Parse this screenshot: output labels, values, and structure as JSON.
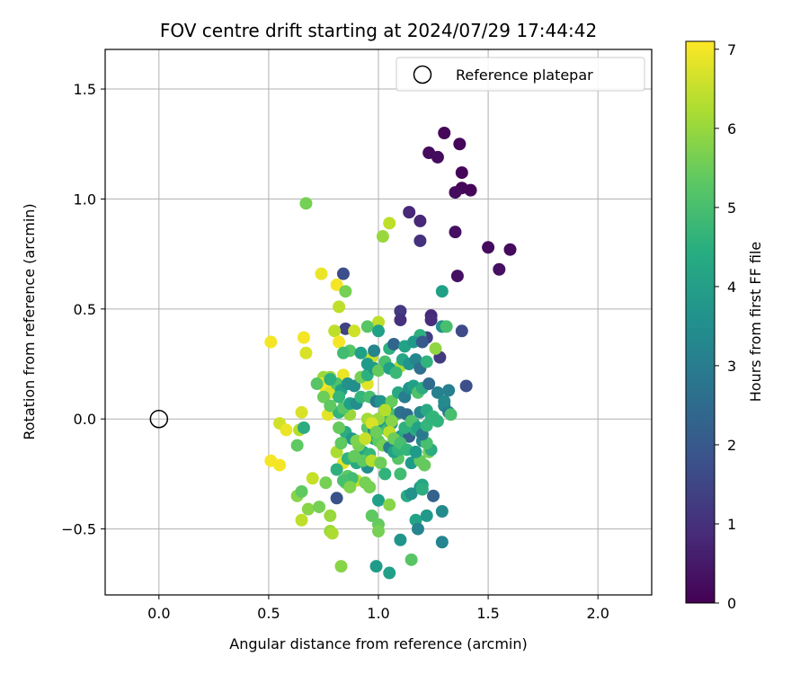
{
  "chart_data": {
    "type": "scatter",
    "title": "FOV centre drift starting at 2024/07/29 17:44:42",
    "xlabel": "Angular distance from reference (arcmin)",
    "ylabel": "Rotation from reference (arcmin)",
    "xlim": [
      -0.245,
      2.245
    ],
    "ylim": [
      -0.8,
      1.68
    ],
    "xticks": [
      0.0,
      0.5,
      1.0,
      1.5,
      2.0
    ],
    "xtick_labels": [
      "0.0",
      "0.5",
      "1.0",
      "1.5",
      "2.0"
    ],
    "yticks": [
      -0.5,
      0.0,
      0.5,
      1.0,
      1.5
    ],
    "ytick_labels": [
      "−0.5",
      "0.0",
      "0.5",
      "1.0",
      "1.5"
    ],
    "grid": true,
    "legend": {
      "placement": "top-right",
      "label": "Reference platepar"
    },
    "reference_point": {
      "x": 0.0,
      "y": 0.0
    },
    "colorbar": {
      "label": "Hours from first FF file",
      "range": [
        0,
        7.1
      ],
      "ticks": [
        0,
        1,
        2,
        3,
        4,
        5,
        6,
        7
      ],
      "colormap": "viridis"
    },
    "points": [
      [
        1.3,
        1.3,
        0.1
      ],
      [
        1.37,
        1.25,
        0.1
      ],
      [
        1.23,
        1.21,
        0.2
      ],
      [
        1.27,
        1.19,
        0.2
      ],
      [
        1.38,
        1.12,
        0.1
      ],
      [
        1.38,
        1.05,
        0.1
      ],
      [
        1.42,
        1.04,
        0.1
      ],
      [
        1.35,
        1.03,
        0.2
      ],
      [
        1.14,
        0.94,
        0.8
      ],
      [
        1.19,
        0.9,
        0.8
      ],
      [
        1.19,
        0.81,
        1.0
      ],
      [
        1.35,
        0.85,
        0.3
      ],
      [
        1.5,
        0.78,
        0.2
      ],
      [
        1.6,
        0.77,
        0.2
      ],
      [
        1.55,
        0.68,
        0.3
      ],
      [
        1.36,
        0.65,
        0.3
      ],
      [
        0.84,
        0.66,
        1.7
      ],
      [
        1.1,
        0.49,
        1.2
      ],
      [
        1.24,
        0.47,
        0.8
      ],
      [
        1.1,
        0.45,
        1.0
      ],
      [
        1.38,
        0.4,
        1.6
      ],
      [
        1.22,
        0.37,
        1.3
      ],
      [
        1.28,
        0.28,
        1.2
      ],
      [
        1.4,
        0.15,
        1.7
      ],
      [
        1.24,
        0.45,
        0.9
      ],
      [
        0.85,
        0.41,
        1.4
      ],
      [
        0.67,
        0.98,
        5.6
      ],
      [
        1.02,
        0.83,
        6.0
      ],
      [
        1.05,
        0.89,
        6.4
      ],
      [
        0.74,
        0.66,
        6.9
      ],
      [
        0.81,
        0.61,
        7.0
      ],
      [
        0.85,
        0.58,
        5.6
      ],
      [
        0.82,
        0.51,
        6.4
      ],
      [
        0.8,
        0.4,
        6.4
      ],
      [
        0.89,
        0.4,
        6.6
      ],
      [
        1.0,
        0.44,
        6.4
      ],
      [
        0.95,
        0.42,
        5.2
      ],
      [
        0.66,
        0.37,
        7.0
      ],
      [
        0.82,
        0.35,
        7.0
      ],
      [
        0.67,
        0.3,
        6.7
      ],
      [
        0.51,
        0.35,
        7.0
      ],
      [
        0.75,
        0.19,
        6.0
      ],
      [
        0.74,
        0.16,
        6.9
      ],
      [
        0.76,
        0.14,
        7.0
      ],
      [
        0.78,
        0.12,
        6.7
      ],
      [
        0.84,
        0.2,
        6.9
      ],
      [
        0.82,
        0.15,
        6.6
      ],
      [
        0.95,
        0.16,
        6.8
      ],
      [
        0.97,
        0.28,
        6.5
      ],
      [
        1.1,
        0.24,
        6.2
      ],
      [
        0.87,
        0.02,
        6.0
      ],
      [
        0.77,
        0.02,
        6.8
      ],
      [
        0.65,
        0.03,
        6.7
      ],
      [
        0.55,
        -0.02,
        6.6
      ],
      [
        0.58,
        -0.05,
        6.9
      ],
      [
        0.64,
        -0.05,
        6.3
      ],
      [
        0.63,
        -0.12,
        5.3
      ],
      [
        0.51,
        -0.19,
        7.0
      ],
      [
        0.55,
        -0.21,
        7.0
      ],
      [
        0.7,
        -0.27,
        6.5
      ],
      [
        0.76,
        -0.29,
        5.6
      ],
      [
        0.84,
        -0.2,
        6.8
      ],
      [
        0.81,
        -0.15,
        6.2
      ],
      [
        0.85,
        -0.29,
        5.5
      ],
      [
        0.9,
        -0.28,
        6.4
      ],
      [
        0.63,
        -0.35,
        5.8
      ],
      [
        0.65,
        -0.33,
        5.3
      ],
      [
        0.68,
        -0.41,
        5.8
      ],
      [
        0.73,
        -0.4,
        5.6
      ],
      [
        0.78,
        -0.44,
        6.0
      ],
      [
        0.65,
        -0.46,
        6.4
      ],
      [
        0.78,
        -0.51,
        6.0
      ],
      [
        0.79,
        -0.52,
        6.2
      ],
      [
        0.83,
        -0.67,
        5.8
      ],
      [
        0.81,
        -0.36,
        1.8
      ],
      [
        0.97,
        -0.44,
        5.3
      ],
      [
        1.0,
        -0.37,
        4.0
      ],
      [
        1.0,
        -0.48,
        5.4
      ],
      [
        1.0,
        -0.51,
        5.6
      ],
      [
        1.05,
        -0.39,
        5.8
      ],
      [
        1.1,
        -0.55,
        3.7
      ],
      [
        1.13,
        -0.35,
        4.3
      ],
      [
        1.15,
        -0.34,
        3.6
      ],
      [
        1.17,
        -0.46,
        4.1
      ],
      [
        1.18,
        -0.5,
        3.2
      ],
      [
        1.19,
        -0.31,
        3.7
      ],
      [
        1.2,
        -0.3,
        4.2
      ],
      [
        1.2,
        -0.32,
        4.4
      ],
      [
        1.25,
        -0.35,
        2.2
      ],
      [
        1.22,
        -0.44,
        3.8
      ],
      [
        1.29,
        -0.42,
        3.4
      ],
      [
        1.29,
        -0.56,
        3.2
      ],
      [
        0.99,
        -0.67,
        3.9
      ],
      [
        1.05,
        -0.7,
        4.0
      ],
      [
        1.15,
        -0.64,
        5.2
      ],
      [
        1.09,
        -0.18,
        5.2
      ],
      [
        1.1,
        -0.25,
        4.9
      ],
      [
        1.15,
        -0.2,
        3.9
      ],
      [
        1.19,
        -0.19,
        5.4
      ],
      [
        1.21,
        -0.21,
        5.4
      ],
      [
        1.23,
        -0.15,
        5.6
      ],
      [
        1.24,
        -0.14,
        4.4
      ],
      [
        0.9,
        -0.2,
        4.3
      ],
      [
        0.86,
        -0.26,
        5.3
      ],
      [
        0.88,
        -0.27,
        4.9
      ],
      [
        0.95,
        -0.22,
        3.5
      ],
      [
        0.93,
        -0.15,
        4.2
      ],
      [
        0.96,
        -0.16,
        4.7
      ],
      [
        0.98,
        -0.09,
        4.0
      ],
      [
        1.0,
        -0.1,
        5.3
      ],
      [
        1.02,
        -0.12,
        5.6
      ],
      [
        1.05,
        -0.13,
        3.1
      ],
      [
        1.07,
        -0.15,
        4.1
      ],
      [
        1.09,
        -0.14,
        4.6
      ],
      [
        1.1,
        -0.08,
        3.7
      ],
      [
        1.12,
        -0.07,
        4.3
      ],
      [
        1.14,
        -0.08,
        2.2
      ],
      [
        1.17,
        -0.05,
        4.4
      ],
      [
        1.2,
        -0.1,
        3.4
      ],
      [
        1.22,
        -0.11,
        5.0
      ],
      [
        0.85,
        -0.06,
        4.4
      ],
      [
        0.88,
        -0.09,
        3.8
      ],
      [
        0.91,
        -0.12,
        5.6
      ],
      [
        0.82,
        -0.04,
        5.4
      ],
      [
        0.95,
        -0.04,
        5.2
      ],
      [
        0.98,
        -0.05,
        3.3
      ],
      [
        1.01,
        -0.03,
        3.8
      ],
      [
        1.02,
        0.01,
        4.6
      ],
      [
        1.04,
        -0.05,
        4.9
      ],
      [
        1.06,
        -0.02,
        3.5
      ],
      [
        1.08,
        0.02,
        5.0
      ],
      [
        1.1,
        0.03,
        2.7
      ],
      [
        1.13,
        0.02,
        2.5
      ],
      [
        1.16,
        -0.02,
        4.1
      ],
      [
        1.19,
        0.03,
        3.3
      ],
      [
        1.22,
        0.04,
        4.3
      ],
      [
        1.25,
        0.01,
        4.7
      ],
      [
        1.27,
        -0.01,
        4.6
      ],
      [
        1.3,
        0.06,
        3.3
      ],
      [
        1.32,
        0.03,
        2.9
      ],
      [
        1.33,
        0.02,
        5.0
      ],
      [
        0.82,
        0.03,
        4.6
      ],
      [
        0.84,
        0.05,
        5.2
      ],
      [
        0.87,
        0.07,
        4.0
      ],
      [
        0.9,
        0.07,
        3.5
      ],
      [
        0.92,
        0.1,
        4.7
      ],
      [
        0.96,
        0.1,
        5.0
      ],
      [
        0.99,
        0.08,
        2.9
      ],
      [
        1.01,
        0.08,
        3.7
      ],
      [
        1.04,
        0.06,
        3.9
      ],
      [
        1.06,
        0.08,
        5.4
      ],
      [
        1.09,
        0.12,
        4.3
      ],
      [
        1.12,
        0.1,
        3.0
      ],
      [
        1.14,
        0.14,
        3.6
      ],
      [
        1.16,
        0.15,
        4.0
      ],
      [
        1.18,
        0.12,
        5.1
      ],
      [
        1.2,
        0.14,
        4.4
      ],
      [
        1.23,
        0.16,
        2.5
      ],
      [
        1.27,
        0.12,
        3.1
      ],
      [
        1.3,
        0.08,
        3.4
      ],
      [
        1.32,
        0.13,
        3.1
      ],
      [
        0.72,
        0.16,
        5.2
      ],
      [
        0.78,
        0.19,
        6.0
      ],
      [
        0.81,
        0.16,
        5.1
      ],
      [
        0.83,
        0.13,
        4.0
      ],
      [
        0.86,
        0.16,
        3.6
      ],
      [
        0.89,
        0.15,
        3.5
      ],
      [
        0.92,
        0.19,
        5.6
      ],
      [
        0.95,
        0.2,
        4.5
      ],
      [
        0.98,
        0.23,
        3.8
      ],
      [
        1.0,
        0.22,
        5.4
      ],
      [
        1.03,
        0.26,
        5.0
      ],
      [
        1.05,
        0.23,
        4.0
      ],
      [
        1.08,
        0.21,
        4.8
      ],
      [
        1.11,
        0.27,
        4.2
      ],
      [
        1.14,
        0.25,
        3.7
      ],
      [
        1.17,
        0.27,
        3.3
      ],
      [
        1.19,
        0.23,
        2.6
      ],
      [
        1.22,
        0.26,
        4.6
      ],
      [
        1.26,
        0.32,
        5.9
      ],
      [
        1.29,
        0.42,
        3.6
      ],
      [
        1.31,
        0.42,
        5.0
      ],
      [
        1.19,
        0.38,
        4.5
      ],
      [
        0.87,
        0.31,
        5.2
      ],
      [
        0.92,
        0.3,
        4.0
      ],
      [
        0.95,
        0.25,
        3.9
      ],
      [
        0.98,
        0.31,
        3.2
      ],
      [
        1.0,
        0.4,
        4.0
      ],
      [
        1.05,
        0.32,
        4.5
      ],
      [
        1.07,
        0.34,
        2.3
      ],
      [
        1.12,
        0.33,
        4.1
      ],
      [
        1.16,
        0.35,
        3.8
      ],
      [
        1.2,
        0.35,
        2.0
      ],
      [
        1.29,
        0.58,
        4.0
      ],
      [
        0.84,
        0.3,
        4.9
      ],
      [
        0.78,
        0.18,
        4.5
      ],
      [
        0.75,
        0.1,
        5.5
      ],
      [
        0.82,
        0.1,
        4.7
      ],
      [
        0.78,
        0.06,
        5.3
      ],
      [
        0.66,
        -0.04,
        4.4
      ],
      [
        0.83,
        -0.11,
        5.3
      ],
      [
        0.9,
        -0.1,
        5.7
      ],
      [
        0.94,
        -0.09,
        6.5
      ],
      [
        0.98,
        -0.01,
        5.3
      ],
      [
        1.0,
        0.0,
        6.0
      ],
      [
        1.03,
        0.04,
        6.3
      ],
      [
        1.06,
        -0.01,
        5.8
      ],
      [
        1.12,
        -0.04,
        4.5
      ],
      [
        1.15,
        -0.01,
        5.1
      ],
      [
        1.18,
        -0.04,
        4.1
      ],
      [
        1.2,
        -0.07,
        2.9
      ],
      [
        1.22,
        -0.03,
        4.7
      ],
      [
        1.24,
        0.0,
        4.6
      ],
      [
        0.95,
        0.0,
        6.1
      ],
      [
        0.97,
        -0.02,
        6.7
      ],
      [
        0.99,
        -0.06,
        5.5
      ],
      [
        1.05,
        -0.06,
        6.4
      ],
      [
        1.07,
        -0.09,
        5.5
      ],
      [
        1.1,
        -0.11,
        5.0
      ],
      [
        1.13,
        -0.14,
        4.7
      ],
      [
        1.17,
        -0.15,
        3.9
      ],
      [
        0.86,
        -0.18,
        4.6
      ],
      [
        0.89,
        -0.17,
        5.4
      ],
      [
        0.93,
        -0.19,
        5.3
      ],
      [
        0.97,
        -0.19,
        6.3
      ],
      [
        1.01,
        -0.2,
        5.5
      ],
      [
        1.03,
        -0.25,
        4.6
      ],
      [
        0.81,
        -0.23,
        4.5
      ],
      [
        0.84,
        -0.28,
        5.0
      ],
      [
        0.87,
        -0.31,
        5.7
      ],
      [
        0.94,
        -0.29,
        5.6
      ],
      [
        0.96,
        -0.31,
        5.6
      ]
    ]
  }
}
